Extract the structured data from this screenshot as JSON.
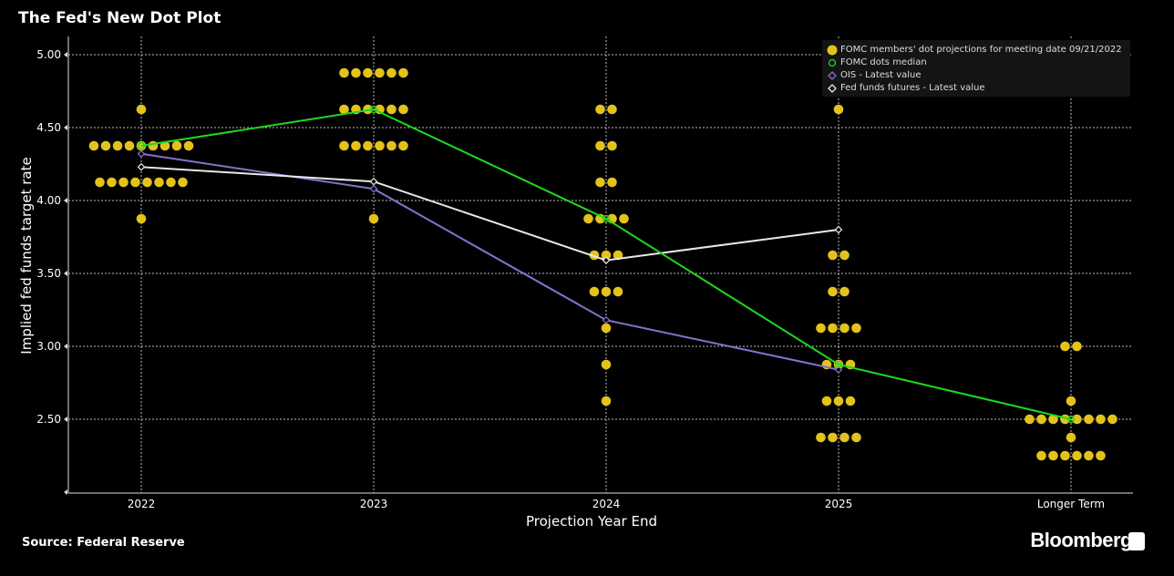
{
  "title": "The Fed's New Dot Plot",
  "source": "Source: Federal Reserve",
  "brand": "Bloomberg",
  "chart_data": {
    "type": "scatter",
    "title": "The Fed's New Dot Plot",
    "xlabel": "Projection Year End",
    "ylabel": "Implied fed funds target rate",
    "categories": [
      "2022",
      "2023",
      "2024",
      "2025",
      "Longer Term"
    ],
    "ylim": [
      2.0,
      5.0
    ],
    "yticks": [
      "5.00",
      "4.50",
      "4.00",
      "3.50",
      "3.00",
      "2.50"
    ],
    "ytick_values": [
      5.0,
      4.5,
      4.0,
      3.5,
      3.0,
      2.5
    ],
    "grid": true,
    "legend_position": "top-right",
    "dots": {
      "name": "FOMC members' dot projections for meeting date 09/21/2022",
      "color": "#e3c21a",
      "counts": [
        [
          [
            4.625,
            1
          ],
          [
            4.375,
            9
          ],
          [
            4.125,
            8
          ],
          [
            3.875,
            1
          ]
        ],
        [
          [
            4.875,
            6
          ],
          [
            4.625,
            6
          ],
          [
            4.375,
            6
          ],
          [
            3.875,
            1
          ]
        ],
        [
          [
            4.625,
            2
          ],
          [
            4.375,
            2
          ],
          [
            4.125,
            2
          ],
          [
            3.875,
            4
          ],
          [
            3.625,
            3
          ],
          [
            3.375,
            3
          ],
          [
            3.125,
            1
          ],
          [
            2.875,
            1
          ],
          [
            2.625,
            1
          ]
        ],
        [
          [
            4.625,
            1
          ],
          [
            3.625,
            2
          ],
          [
            3.375,
            2
          ],
          [
            3.125,
            4
          ],
          [
            2.875,
            3
          ],
          [
            2.625,
            3
          ],
          [
            2.375,
            4
          ]
        ],
        [
          [
            3.0,
            2
          ],
          [
            2.625,
            1
          ],
          [
            2.5,
            8
          ],
          [
            2.375,
            1
          ],
          [
            2.25,
            6
          ]
        ]
      ]
    },
    "series": [
      {
        "name": "FOMC dots median",
        "color": "#1ed81e",
        "marker": "circle",
        "values": [
          4.375,
          4.625,
          3.875,
          2.875,
          2.5
        ]
      },
      {
        "name": "OIS - Latest value",
        "color": "#8a6fd0",
        "marker": "diamond",
        "values": [
          4.32,
          4.08,
          3.18,
          2.84,
          null
        ]
      },
      {
        "name": "Fed funds futures - Latest value",
        "color": "#e8e8e8",
        "marker": "diamond",
        "values": [
          4.23,
          4.13,
          3.59,
          3.8,
          null
        ]
      }
    ]
  }
}
